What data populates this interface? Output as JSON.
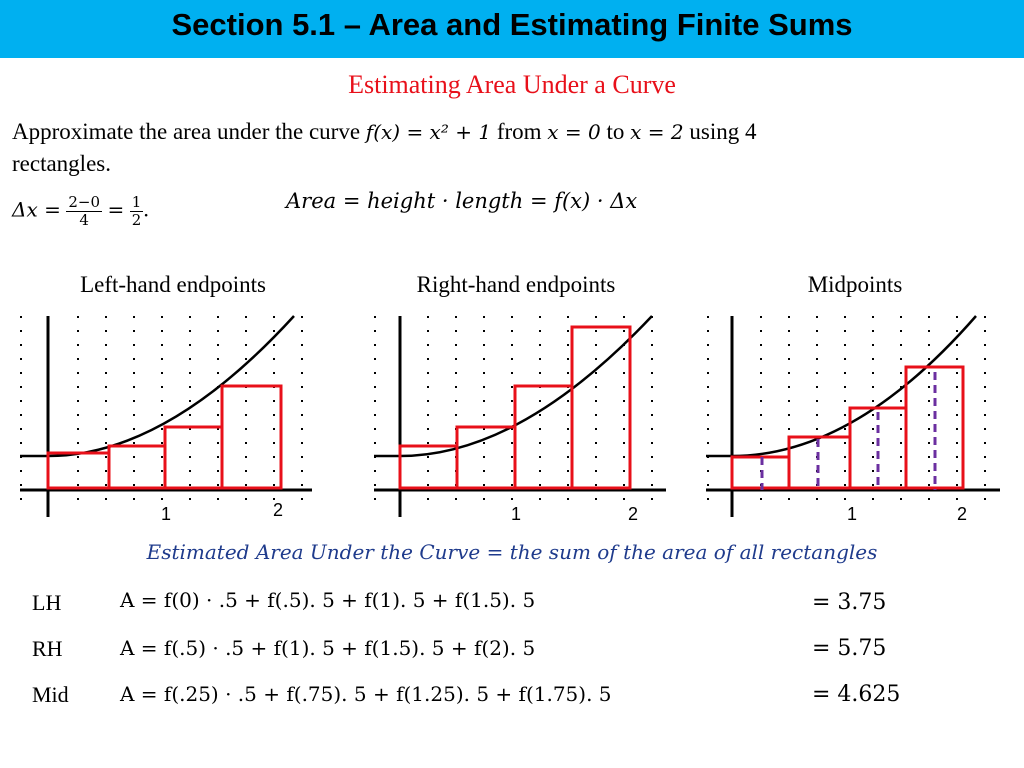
{
  "header": {
    "title": "Section 5.1 – Area and Estimating Finite Sums"
  },
  "subtitle": "Estimating Area Under a Curve",
  "problem": {
    "text1": "Approximate the area under the curve ",
    "fx": "f(x) = x² + 1",
    "text2": " from ",
    "x0": "x = 0",
    "text3": " to ",
    "x2": "x = 2",
    "text4": " using 4",
    "text5": "rectangles."
  },
  "delta": {
    "lhs": "Δx =",
    "num1": "2−0",
    "den1": "4",
    "eq": "=",
    "num2": "1",
    "den2": "2",
    "period": "."
  },
  "area_formula": "Area = height · length = f(x) · Δx",
  "graphs": {
    "left_label": "Left-hand endpoints",
    "right_label": "Right-hand endpoints",
    "mid_label": "Midpoints",
    "tick1": "1",
    "tick2": "2"
  },
  "summary": "Estimated Area Under the Curve = the sum of the area of all rectangles",
  "rows": [
    {
      "label": "LH",
      "formula": "A = f(0) · .5 + f(.5). 5 + f(1). 5 + f(1.5). 5",
      "result": "= 3.75"
    },
    {
      "label": "RH",
      "formula": "A = f(.5) · .5 + f(1). 5 + f(1.5). 5 + f(2). 5",
      "result": "= 5.75"
    },
    {
      "label": "Mid",
      "formula": "A = f(.25) · .5 + f(.75). 5 + f(1.25). 5 + f(1.75). 5",
      "result": "= 4.625"
    }
  ],
  "colors": {
    "header_bg": "#00b0f0",
    "subtitle": "#e8101a",
    "rect": "#e8101a",
    "mid_dash": "#6b2fa0",
    "summary": "#1f3b8c"
  }
}
